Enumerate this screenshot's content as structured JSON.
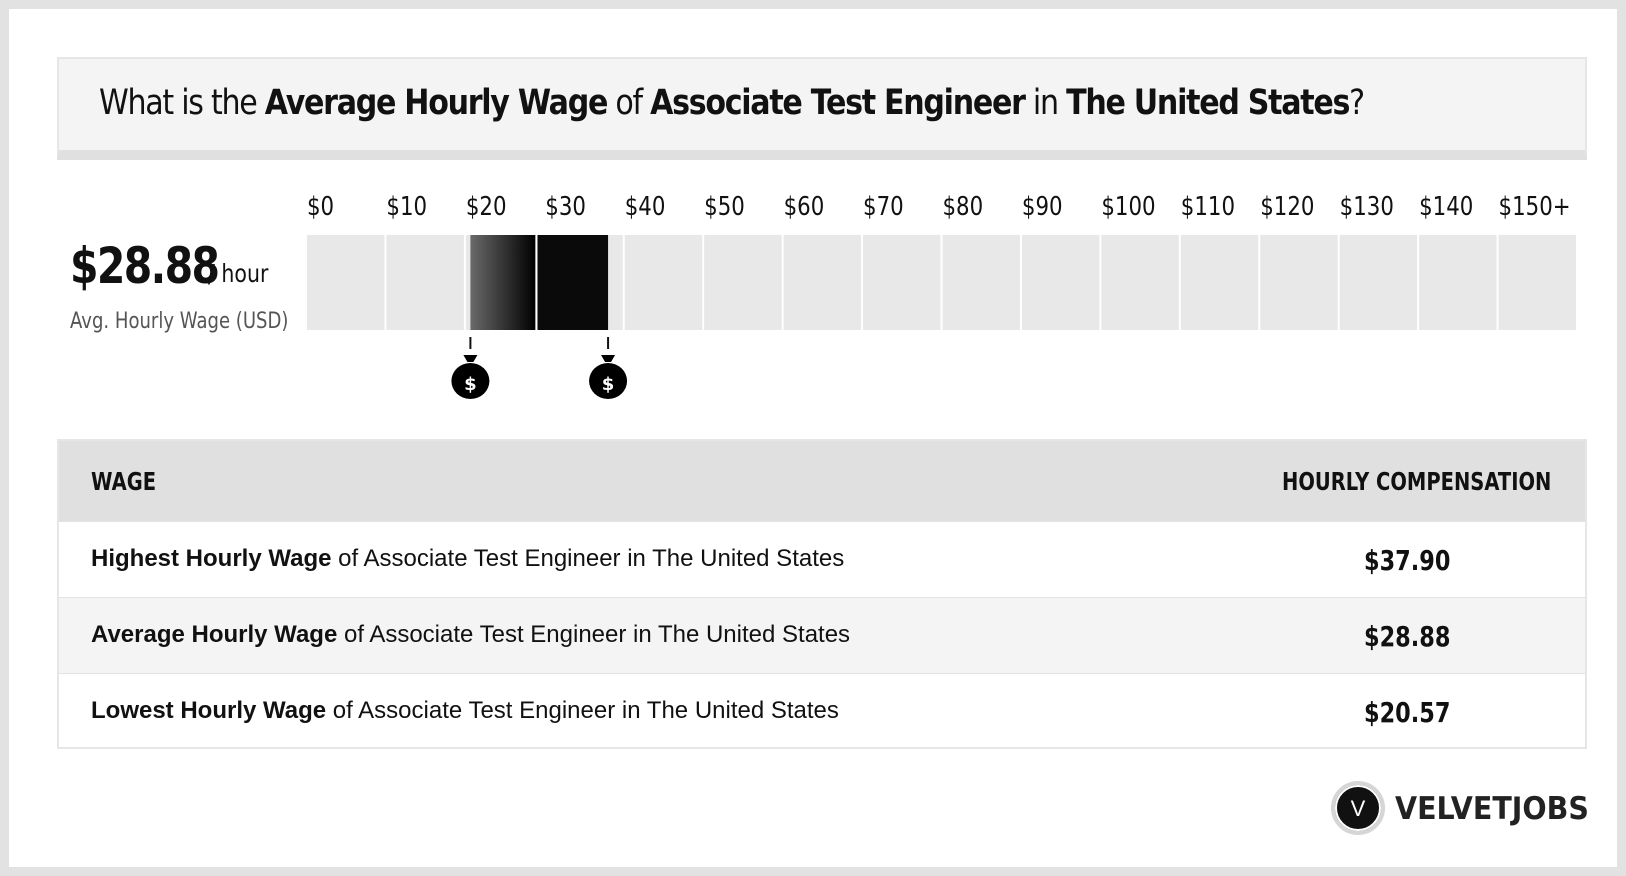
{
  "question": {
    "p1": "What is the ",
    "b1": "Average Hourly Wage",
    "p2": " of ",
    "b2": "Associate Test Engineer",
    "p3": " in ",
    "b3": "The United States",
    "p4": "?"
  },
  "summary": {
    "amount": "$28.88",
    "unit": "/ hour",
    "caption": "Avg. Hourly Wage (USD)"
  },
  "chart_data": {
    "type": "bar",
    "orientation": "horizontal-range",
    "x_ticks": [
      "$0",
      "$10",
      "$20",
      "$30",
      "$40",
      "$50",
      "$60",
      "$70",
      "$80",
      "$90",
      "$100",
      "$110",
      "$120",
      "$130",
      "$140",
      "$150+"
    ],
    "xlim": [
      0,
      150
    ],
    "range": {
      "low": 20.57,
      "average": 28.88,
      "high": 37.9
    },
    "markers": [
      {
        "value": 20.57,
        "icon": "money-bag-icon",
        "glyph": "$"
      },
      {
        "value": 37.9,
        "icon": "money-bag-icon",
        "glyph": "$"
      }
    ],
    "colors": {
      "track": "#e8e8e8",
      "fill_low": "#6a6a6a",
      "fill_high": "#000000"
    }
  },
  "table": {
    "headers": [
      "WAGE",
      "HOURLY COMPENSATION"
    ],
    "rows": [
      {
        "bold": "Highest Hourly Wage",
        "rest": " of Associate Test Engineer in The United States",
        "value": "$37.90"
      },
      {
        "bold": "Average Hourly Wage",
        "rest": " of Associate Test Engineer in The United States",
        "value": "$28.88"
      },
      {
        "bold": "Lowest Hourly Wage",
        "rest": " of Associate Test Engineer in The United States",
        "value": "$20.57"
      }
    ]
  },
  "brand": {
    "logo_letter": "V",
    "name": "VELVETJOBS"
  }
}
